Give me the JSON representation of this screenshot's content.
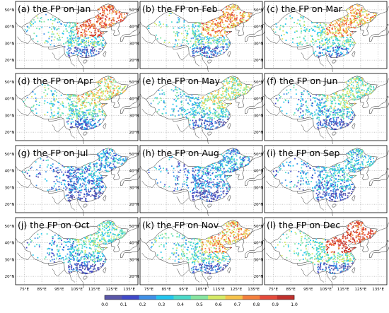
{
  "panels": [
    {
      "title": "(a) the FP on Jan",
      "month": "Jan",
      "north_level": 0.85,
      "central_level": 0.4,
      "south_level": 0.12
    },
    {
      "title": "(b) the FP on Feb",
      "month": "Feb",
      "north_level": 0.75,
      "central_level": 0.4,
      "south_level": 0.15
    },
    {
      "title": "(c) the FP on Mar",
      "month": "Mar",
      "north_level": 0.7,
      "central_level": 0.45,
      "south_level": 0.2
    },
    {
      "title": "(d) the FP on Apr",
      "month": "Apr",
      "north_level": 0.6,
      "central_level": 0.4,
      "south_level": 0.18
    },
    {
      "title": "(e) the FP on May",
      "month": "May",
      "north_level": 0.55,
      "central_level": 0.35,
      "south_level": 0.15
    },
    {
      "title": "(f) the FP on Jun",
      "month": "Jun",
      "north_level": 0.5,
      "central_level": 0.3,
      "south_level": 0.12
    },
    {
      "title": "(g) the FP on Jul",
      "month": "Jul",
      "north_level": 0.3,
      "central_level": 0.2,
      "south_level": 0.08
    },
    {
      "title": "(h) the FP on Aug",
      "month": "Aug",
      "north_level": 0.3,
      "central_level": 0.2,
      "south_level": 0.08
    },
    {
      "title": "(i) the FP on Sep",
      "month": "Sep",
      "north_level": 0.35,
      "central_level": 0.25,
      "south_level": 0.1
    },
    {
      "title": "(j) the FP on Oct",
      "month": "Oct",
      "north_level": 0.45,
      "central_level": 0.3,
      "south_level": 0.1
    },
    {
      "title": "(k) the FP on Nov",
      "month": "Nov",
      "north_level": 0.7,
      "central_level": 0.4,
      "south_level": 0.12
    },
    {
      "title": "(l) the FP on Dec",
      "month": "Dec",
      "north_level": 0.9,
      "central_level": 0.45,
      "south_level": 0.15
    }
  ],
  "lat_ticks": [
    "50°N",
    "40°N",
    "30°N",
    "20°N"
  ],
  "lon_ticks": [
    "75°E",
    "85°E",
    "95°E",
    "105°E",
    "115°E",
    "125°E",
    "135°E"
  ],
  "colorbar": {
    "ticks": [
      "0.0",
      "0.1",
      "0.2",
      "0.3",
      "0.4",
      "0.5",
      "0.6",
      "0.7",
      "0.8",
      "0.9",
      "1.0"
    ],
    "colors": [
      "#5a56a8",
      "#3f48c8",
      "#3f8fe6",
      "#22c4ee",
      "#4ad9c8",
      "#86e5a0",
      "#d4ea66",
      "#f6c24a",
      "#f47f3c",
      "#e54a3a",
      "#c0302c"
    ]
  }
}
